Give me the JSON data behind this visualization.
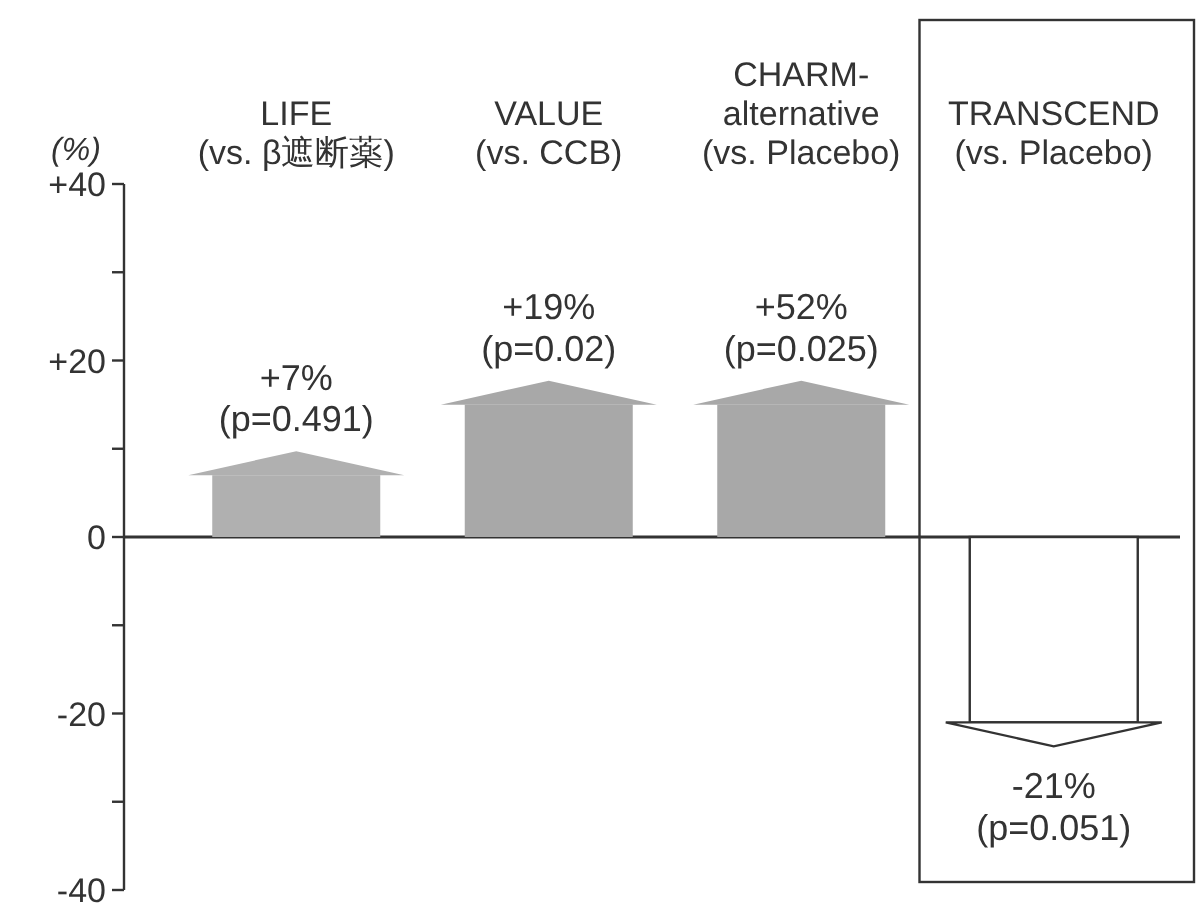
{
  "chart_data": {
    "type": "bar",
    "ylabel": "(%)",
    "categories": [
      "LIFE\n(vs. β遮断薬)",
      "VALUE\n(vs. CCB)",
      "CHARM-\nalternative\n(vs. Placebo)",
      "TRANSCEND\n(vs. Placebo)"
    ],
    "values": [
      7,
      15,
      15,
      -21
    ],
    "colors": [
      "#b0b0b0",
      "#a8a8a8",
      "#a8a8a8",
      "#ffffff"
    ],
    "annotations": [
      {
        "text": "+7%\n(p=0.491)",
        "x": "LIFE\n(vs. β遮断薬)",
        "y": 7
      },
      {
        "text": "+19%\n(p=0.02)",
        "x": "VALUE\n(vs. CCB)",
        "y": 15
      },
      {
        "text": "+52%\n(p=0.025)",
        "x": "CHARM-\nalternative\n(vs. Placebo)",
        "y": 15
      },
      {
        "text": "-21%\n(p=0.051)",
        "x": "TRANSCEND\n(vs. Placebo)",
        "y": -21
      }
    ],
    "ylim": [
      -40,
      40
    ],
    "yticks": [
      -40,
      {
        "value": -30,
        "label": null
      },
      -20,
      {
        "value": -10,
        "label": null
      },
      0,
      {
        "value": 10,
        "label": null
      },
      {
        "value": 20,
        "label": "+20"
      },
      {
        "value": 30,
        "label": null
      },
      {
        "value": 40,
        "label": "+40"
      }
    ]
  }
}
